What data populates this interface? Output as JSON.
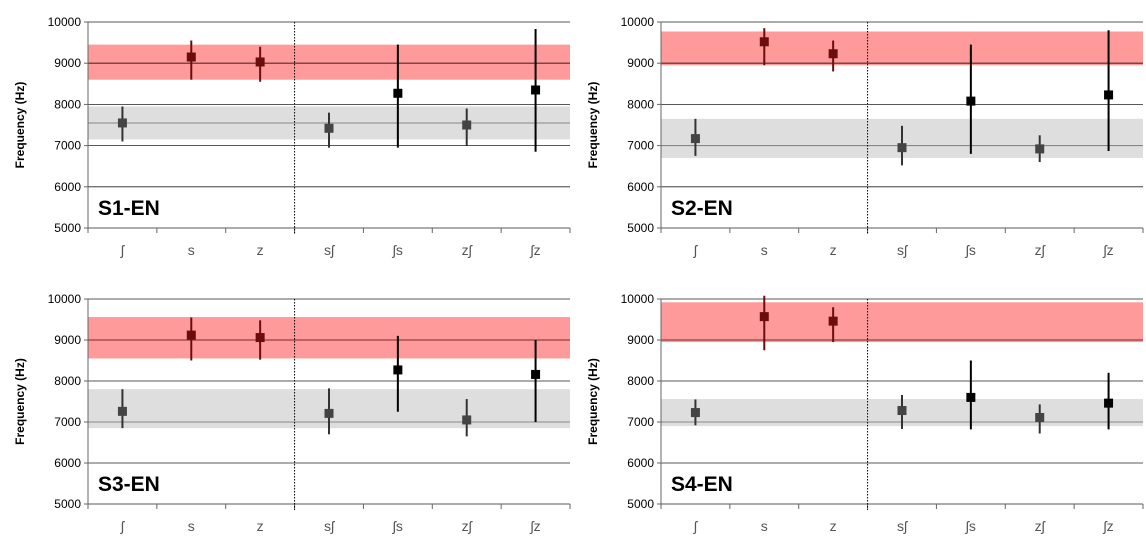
{
  "chart_data": [
    {
      "type": "scatter",
      "label": "S1-EN",
      "ylabel": "Frequency (Hz)",
      "ylim": [
        5000,
        10000
      ],
      "yticks": [
        5000,
        6000,
        7000,
        8000,
        9000,
        10000
      ],
      "categories": [
        "ʃ",
        "s",
        "z",
        "sʃ",
        "ʃs",
        "zʃ",
        "ʃz"
      ],
      "bands": {
        "s_z": {
          "low": 8600,
          "mid": 9000,
          "high": 9450,
          "color": "#ff9a9a"
        },
        "sh": {
          "low": 7150,
          "mid": 7550,
          "high": 7950,
          "color": "#dedede"
        }
      },
      "points": [
        {
          "mean": 7550,
          "low": 7100,
          "high": 7950
        },
        {
          "mean": 9150,
          "low": 8600,
          "high": 9550
        },
        {
          "mean": 9030,
          "low": 8550,
          "high": 9400
        },
        {
          "mean": 7420,
          "low": 6950,
          "high": 7800
        },
        {
          "mean": 8270,
          "low": 6950,
          "high": 9450
        },
        {
          "mean": 7500,
          "low": 7000,
          "high": 7900
        },
        {
          "mean": 8350,
          "low": 6850,
          "high": 9830
        }
      ]
    },
    {
      "type": "scatter",
      "label": "S2-EN",
      "ylabel": "Frequency (Hz)",
      "ylim": [
        5000,
        10000
      ],
      "yticks": [
        5000,
        6000,
        7000,
        8000,
        9000,
        10000
      ],
      "categories": [
        "ʃ",
        "s",
        "z",
        "sʃ",
        "ʃs",
        "zʃ",
        "ʃz"
      ],
      "bands": {
        "s_z": {
          "low": 8950,
          "mid": 9000,
          "high": 9770,
          "color": "#ff9a9a"
        },
        "sh": {
          "low": 6700,
          "mid": 7000,
          "high": 7650,
          "color": "#dedede"
        }
      },
      "points": [
        {
          "mean": 7170,
          "low": 6750,
          "high": 7650
        },
        {
          "mean": 9520,
          "low": 8950,
          "high": 9850
        },
        {
          "mean": 9230,
          "low": 8800,
          "high": 9550
        },
        {
          "mean": 6950,
          "low": 6520,
          "high": 7480
        },
        {
          "mean": 8080,
          "low": 6800,
          "high": 9450
        },
        {
          "mean": 6920,
          "low": 6600,
          "high": 7250
        },
        {
          "mean": 8230,
          "low": 6870,
          "high": 9800
        }
      ]
    },
    {
      "type": "scatter",
      "label": "S3-EN",
      "ylabel": "Frequency (Hz)",
      "ylim": [
        5000,
        10000
      ],
      "yticks": [
        5000,
        6000,
        7000,
        8000,
        9000,
        10000
      ],
      "categories": [
        "ʃ",
        "s",
        "z",
        "sʃ",
        "ʃs",
        "zʃ",
        "ʃz"
      ],
      "bands": {
        "s_z": {
          "low": 8550,
          "mid": 9000,
          "high": 9560,
          "color": "#ff9a9a"
        },
        "sh": {
          "low": 6850,
          "mid": 7000,
          "high": 7800,
          "color": "#dedede"
        }
      },
      "points": [
        {
          "mean": 7260,
          "low": 6850,
          "high": 7800
        },
        {
          "mean": 9120,
          "low": 8500,
          "high": 9550
        },
        {
          "mean": 9060,
          "low": 8520,
          "high": 9480
        },
        {
          "mean": 7210,
          "low": 6700,
          "high": 7820
        },
        {
          "mean": 8270,
          "low": 7250,
          "high": 9100
        },
        {
          "mean": 7050,
          "low": 6650,
          "high": 7560
        },
        {
          "mean": 8160,
          "low": 7000,
          "high": 9000
        }
      ]
    },
    {
      "type": "scatter",
      "label": "S4-EN",
      "ylabel": "Frequency (Hz)",
      "ylim": [
        5000,
        10000
      ],
      "yticks": [
        5000,
        6000,
        7000,
        8000,
        9000,
        10000
      ],
      "categories": [
        "ʃ",
        "s",
        "z",
        "sʃ",
        "ʃs",
        "zʃ",
        "ʃz"
      ],
      "bands": {
        "s_z": {
          "low": 8950,
          "mid": 9000,
          "high": 9920,
          "color": "#ff9a9a"
        },
        "sh": {
          "low": 6900,
          "mid": 7000,
          "high": 7560,
          "color": "#dedede"
        }
      },
      "points": [
        {
          "mean": 7230,
          "low": 6920,
          "high": 7550
        },
        {
          "mean": 9570,
          "low": 8750,
          "high": 10080
        },
        {
          "mean": 9460,
          "low": 8950,
          "high": 9800
        },
        {
          "mean": 7280,
          "low": 6830,
          "high": 7660
        },
        {
          "mean": 7600,
          "low": 6820,
          "high": 8500
        },
        {
          "mean": 7110,
          "low": 6720,
          "high": 7430
        },
        {
          "mean": 7460,
          "low": 6820,
          "high": 8200
        }
      ]
    }
  ]
}
